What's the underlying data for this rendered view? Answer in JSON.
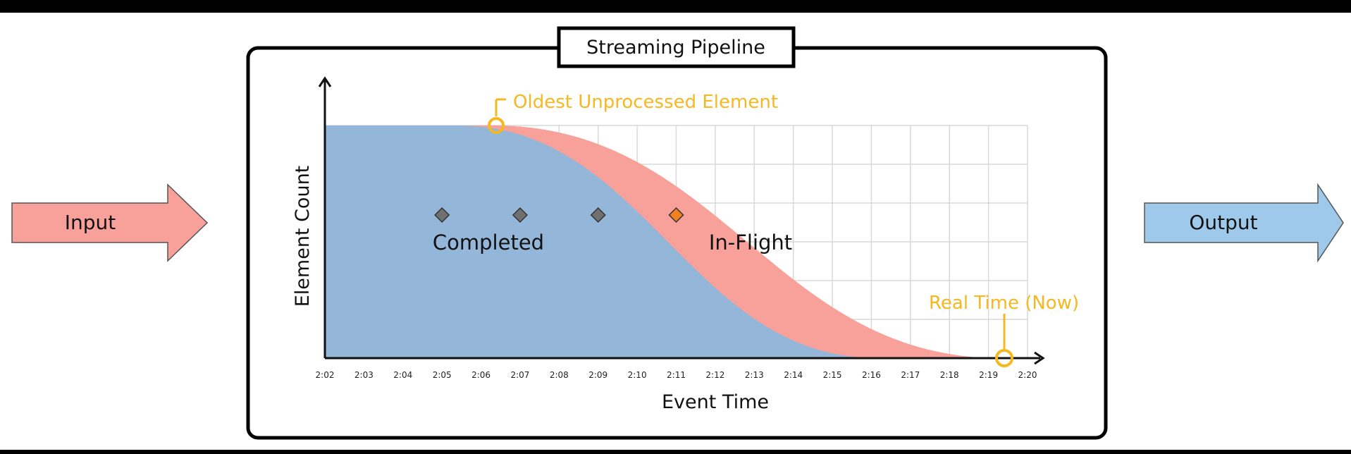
{
  "input_label": "Input",
  "output_label": "Output",
  "pipeline_title": "Streaming Pipeline",
  "y_axis_label": "Element Count",
  "x_axis_label": "Event Time",
  "completed_label": "Completed",
  "inflight_label": "In-Flight",
  "oldest_label": "Oldest Unprocessed Element",
  "realtime_label": "Real Time (Now)",
  "x_ticks": [
    "2:02",
    "2:03",
    "2:04",
    "2:05",
    "2:06",
    "2:07",
    "2:08",
    "2:09",
    "2:10",
    "2:11",
    "2:12",
    "2:13",
    "2:14",
    "2:15",
    "2:16",
    "2:17",
    "2:18",
    "2:19",
    "2:20"
  ],
  "colors": {
    "input": "#f8a19b",
    "output": "#9ec9eb",
    "completed": "#94b6d8",
    "inflight": "#f7a19a",
    "accent": "#f5b820",
    "marker": "#707070",
    "marker_active": "#f08020",
    "grid": "#d8d8d8"
  },
  "markers": [
    {
      "time": "2:05",
      "state": "completed"
    },
    {
      "time": "2:07",
      "state": "completed"
    },
    {
      "time": "2:09",
      "state": "completed"
    },
    {
      "time": "2:11",
      "state": "in-flight"
    }
  ]
}
